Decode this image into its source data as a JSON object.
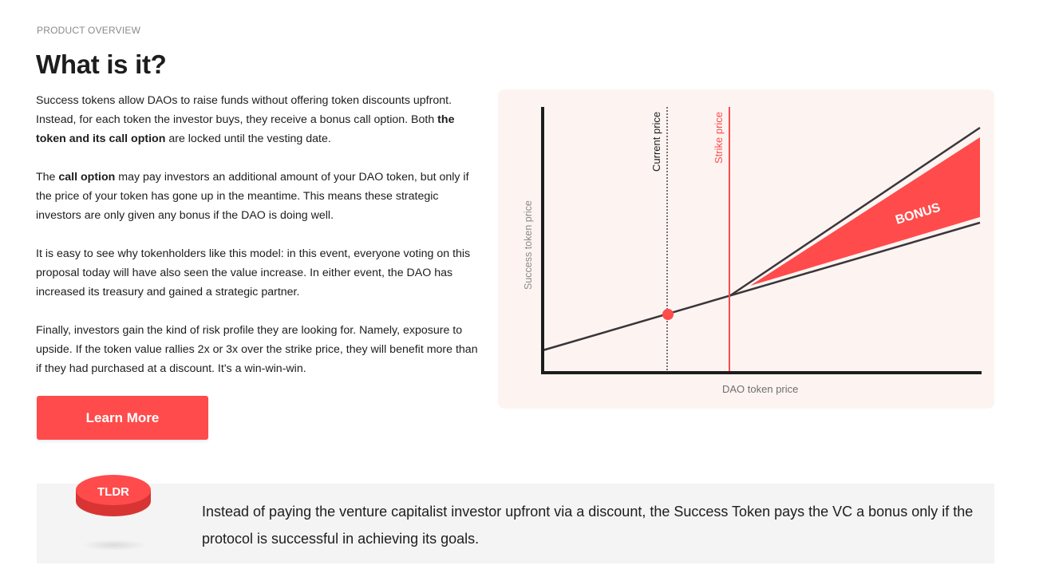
{
  "header": {
    "eyebrow": "PRODUCT OVERVIEW",
    "title": "What is it?"
  },
  "body": {
    "p1_a": "Success tokens allow DAOs to raise funds without offering token discounts upfront. Instead, for each token the investor buys, they receive a bonus call option. Both ",
    "p1_bold": "the token and its call option",
    "p1_b": " are locked until the vesting date.",
    "p2_a": "The ",
    "p2_bold": "call option",
    "p2_b": " may pay investors an additional amount of your DAO token, but only if the price of your token has gone up in the meantime. This means these strategic investors are only given any bonus if the DAO is doing well.",
    "p3": "It is easy to see why tokenholders like this model: in this event, everyone voting on this proposal today will have also seen the value increase. In either event, the DAO has increased its treasury and gained a strategic partner.",
    "p4": "Finally, investors gain the kind of risk profile they are looking for. Namely, exposure to upside. If the token value rallies 2x or 3x over the strike price, they will benefit more than if they had purchased at a discount. It's a win-win-win."
  },
  "cta": {
    "learn_more": "Learn More"
  },
  "diagram": {
    "x_label": "DAO token price",
    "y_label": "Success token price",
    "current_price_label": "Current price",
    "strike_price_label": "Strike price",
    "bonus_label": "BONUS",
    "colors": {
      "accent": "#ff4b4b",
      "line": "#3a3639",
      "background": "#fdf4f2"
    }
  },
  "tldr": {
    "badge": "TLDR",
    "text": "Instead of paying the venture capitalist investor upfront via a discount, the Success Token pays the VC a bonus only if the protocol is successful in achieving its goals."
  }
}
